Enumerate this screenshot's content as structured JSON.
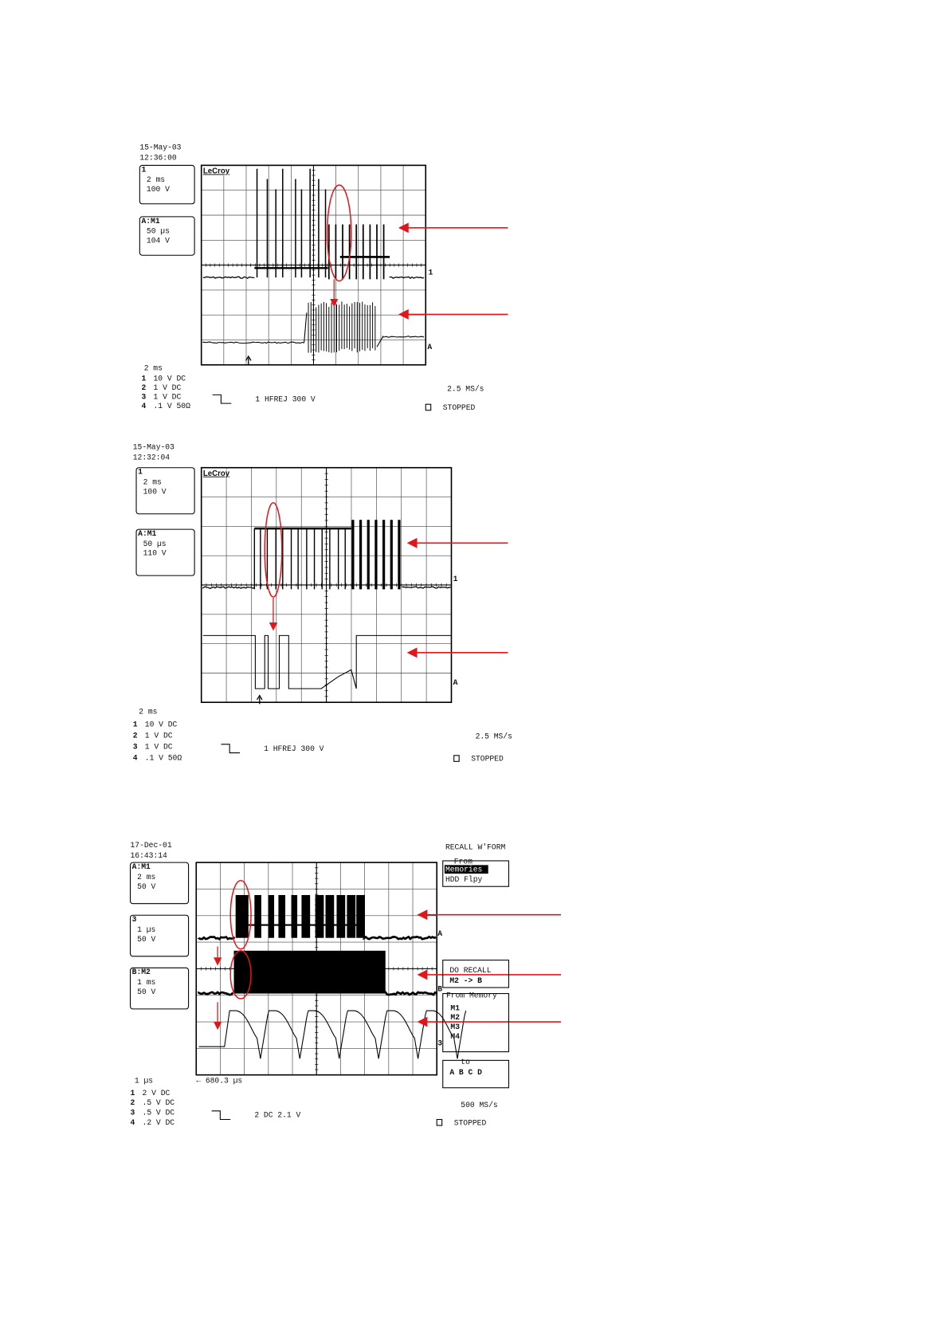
{
  "scopes": [
    {
      "date": "15-May-03",
      "time": "12:36:00",
      "brand": "LeCroy",
      "boxes": [
        {
          "title": "1",
          "lines": [
            "2 ms",
            "100 V"
          ]
        },
        {
          "title": "A:M1",
          "lines": [
            "50 µs",
            "104 V"
          ]
        }
      ],
      "markers": [
        "1",
        "A"
      ],
      "timebase": "2 ms",
      "channels": [
        {
          "ch": "1",
          "text": "10 V DC"
        },
        {
          "ch": "2",
          "text": "1 V DC"
        },
        {
          "ch": "3",
          "text": "1 V DC"
        },
        {
          "ch": "4",
          "text": ".1 V 50Ω"
        }
      ],
      "trigger": "1 HFREJ 300 V",
      "rate": "2.5 MS/s",
      "status": "STOPPED"
    },
    {
      "date": "15-May-03",
      "time": "12:32:04",
      "brand": "LeCroy",
      "boxes": [
        {
          "title": "1",
          "lines": [
            "2 ms",
            "100 V"
          ]
        },
        {
          "title": "A:M1",
          "lines": [
            "50 µs",
            "110 V"
          ]
        }
      ],
      "markers": [
        "1",
        "A"
      ],
      "timebase": "2 ms",
      "channels": [
        {
          "ch": "1",
          "text": "10 V DC"
        },
        {
          "ch": "2",
          "text": "1 V DC"
        },
        {
          "ch": "3",
          "text": "1 V DC"
        },
        {
          "ch": "4",
          "text": ".1 V 50Ω"
        }
      ],
      "trigger": "1 HFREJ 300 V",
      "rate": "2.5 MS/s",
      "status": "STOPPED"
    },
    {
      "date": "17-Dec-01",
      "time": "16:43:14",
      "boxes": [
        {
          "title": "A:M1",
          "lines": [
            "2 ms",
            "50 V"
          ]
        },
        {
          "title": "3",
          "lines": [
            "1 µs",
            "50 V"
          ]
        },
        {
          "title": "B:M2",
          "lines": [
            "1 ms",
            "50 V"
          ]
        }
      ],
      "markers": [
        "A",
        "B",
        "3"
      ],
      "timebase": "1 µs",
      "channels": [
        {
          "ch": "1",
          "text": "2 V DC"
        },
        {
          "ch": "2",
          "text": ".5 V DC"
        },
        {
          "ch": "3",
          "text": ".5 V DC"
        },
        {
          "ch": "4",
          "text": ".2 V DC"
        }
      ],
      "trigger": "2 DC 2.1 V",
      "rate": "500 MS/s",
      "status": "STOPPED",
      "cursor": "← 680.3 µs",
      "menu": {
        "title": "RECALL W'FORM",
        "from": {
          "label": "From",
          "options": [
            "Memories",
            "HDD Flpy"
          ]
        },
        "action": [
          "DO RECALL",
          "M2 -> B"
        ],
        "memory": {
          "label": "From Memory",
          "options": [
            "M1",
            "M2",
            "M3",
            "M4"
          ]
        },
        "to": {
          "label": "to",
          "options": "A B C D"
        }
      }
    }
  ]
}
